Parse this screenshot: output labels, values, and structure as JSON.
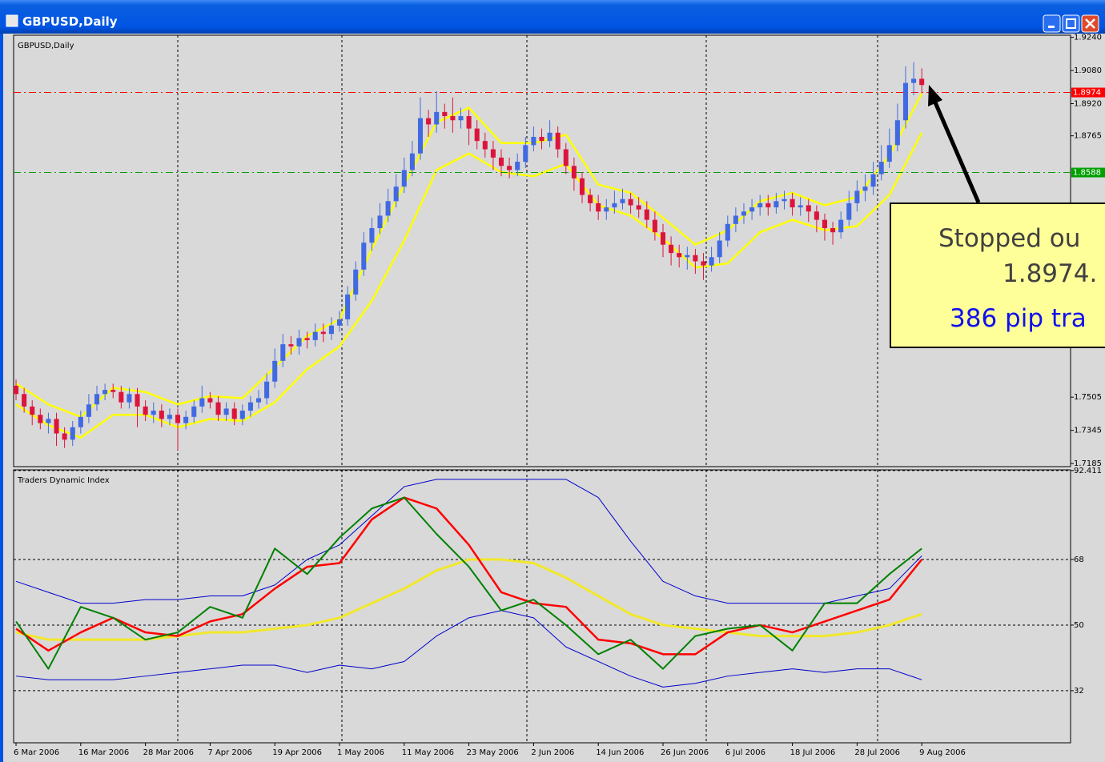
{
  "window_title": "GBPUSD,Daily",
  "chart_data": [
    {
      "type": "candlestick",
      "title": "GBPUSD,Daily",
      "bull_color": "#4169e1",
      "bear_color": "#dc143c",
      "xlim": [
        -0.3,
        130.4
      ],
      "ylim": [
        1.717,
        1.925
      ],
      "yticks": [
        {
          "value": 1.924,
          "label": "1.9240"
        },
        {
          "value": 1.908,
          "label": "1.9080"
        },
        {
          "value": 1.892,
          "label": "1.8920"
        },
        {
          "value": 1.8765,
          "label": "1.8765"
        },
        {
          "value": 1.7505,
          "label": "1.7505"
        },
        {
          "value": 1.7345,
          "label": "1.7345"
        },
        {
          "value": 1.7185,
          "label": "1.7185"
        }
      ],
      "xticks": [
        {
          "value": 0,
          "label": "6 Mar 2006"
        },
        {
          "value": 8,
          "label": "16 Mar 2006"
        },
        {
          "value": 16,
          "label": "28 Mar 2006"
        },
        {
          "value": 24,
          "label": "7 Apr 2006"
        },
        {
          "value": 32,
          "label": "19 Apr 2006"
        },
        {
          "value": 40,
          "label": "1 May 2006"
        },
        {
          "value": 48,
          "label": "11 May 2006"
        },
        {
          "value": 56,
          "label": "23 May 2006"
        },
        {
          "value": 64,
          "label": "2 Jun 2006"
        },
        {
          "value": 72,
          "label": "14 Jun 2006"
        },
        {
          "value": 80,
          "label": "26 Jun 2006"
        },
        {
          "value": 88,
          "label": "6 Jul 2006"
        },
        {
          "value": 96,
          "label": "18 Jul 2006"
        },
        {
          "value": 104,
          "label": "28 Jul 2006"
        },
        {
          "value": 112,
          "label": "9 Aug 2006"
        }
      ],
      "levels": [
        {
          "value": 1.8974,
          "color": "#ff0000"
        },
        {
          "value": 1.8588,
          "color": "#00a000"
        }
      ],
      "open": [
        1.756,
        1.752,
        1.746,
        1.742,
        1.738,
        1.74,
        1.733,
        1.73,
        1.736,
        1.741,
        1.747,
        1.752,
        1.754,
        1.753,
        1.748,
        1.752,
        1.746,
        1.742,
        1.744,
        1.74,
        1.742,
        1.738,
        1.741,
        1.746,
        1.75,
        1.748,
        1.742,
        1.745,
        1.74,
        1.744,
        1.748,
        1.75,
        1.758,
        1.768,
        1.776,
        1.775,
        1.779,
        1.778,
        1.782,
        1.781,
        1.785,
        1.788,
        1.8,
        1.812,
        1.825,
        1.832,
        1.838,
        1.845,
        1.852,
        1.86,
        1.868,
        1.885,
        1.882,
        1.888,
        1.886,
        1.884,
        1.886,
        1.88,
        1.874,
        1.87,
        1.866,
        1.862,
        1.86,
        1.864,
        1.872,
        1.876,
        1.874,
        1.878,
        1.87,
        1.862,
        1.856,
        1.848,
        1.844,
        1.84,
        1.842,
        1.844,
        1.846,
        1.843,
        1.841,
        1.836,
        1.83,
        1.824,
        1.82,
        1.818,
        1.819,
        1.816,
        1.814,
        1.818,
        1.826,
        1.834,
        1.838,
        1.84,
        1.842,
        1.844,
        1.842,
        1.845,
        1.846,
        1.842,
        1.843,
        1.84,
        1.836,
        1.832,
        1.83,
        1.836,
        1.844,
        1.85,
        1.852,
        1.858,
        1.864,
        1.872,
        1.884,
        1.902,
        1.904
      ],
      "high": [
        1.759,
        1.755,
        1.749,
        1.745,
        1.743,
        1.743,
        1.736,
        1.739,
        1.744,
        1.752,
        1.756,
        1.757,
        1.757,
        1.756,
        1.755,
        1.755,
        1.749,
        1.748,
        1.747,
        1.745,
        1.745,
        1.744,
        1.749,
        1.756,
        1.753,
        1.751,
        1.748,
        1.748,
        1.747,
        1.751,
        1.754,
        1.762,
        1.774,
        1.781,
        1.78,
        1.783,
        1.782,
        1.786,
        1.786,
        1.789,
        1.792,
        1.804,
        1.816,
        1.83,
        1.837,
        1.844,
        1.851,
        1.858,
        1.866,
        1.874,
        1.895,
        1.889,
        1.898,
        1.892,
        1.895,
        1.89,
        1.889,
        1.884,
        1.878,
        1.874,
        1.87,
        1.866,
        1.868,
        1.876,
        1.881,
        1.88,
        1.884,
        1.881,
        1.873,
        1.866,
        1.859,
        1.851,
        1.848,
        1.846,
        1.85,
        1.851,
        1.849,
        1.847,
        1.845,
        1.84,
        1.834,
        1.828,
        1.824,
        1.823,
        1.822,
        1.82,
        1.823,
        1.83,
        1.838,
        1.842,
        1.844,
        1.846,
        1.848,
        1.848,
        1.849,
        1.85,
        1.849,
        1.847,
        1.846,
        1.843,
        1.839,
        1.835,
        1.84,
        1.85,
        1.855,
        1.858,
        1.864,
        1.872,
        1.88,
        1.892,
        1.91,
        1.912,
        1.909
      ],
      "low": [
        1.749,
        1.743,
        1.737,
        1.735,
        1.733,
        1.727,
        1.726,
        1.727,
        1.733,
        1.738,
        1.744,
        1.749,
        1.75,
        1.745,
        1.745,
        1.736,
        1.739,
        1.738,
        1.736,
        1.737,
        1.725,
        1.735,
        1.738,
        1.743,
        1.745,
        1.739,
        1.739,
        1.737,
        1.737,
        1.741,
        1.745,
        1.747,
        1.755,
        1.765,
        1.771,
        1.771,
        1.774,
        1.775,
        1.777,
        1.778,
        1.782,
        1.785,
        1.797,
        1.809,
        1.821,
        1.829,
        1.835,
        1.842,
        1.849,
        1.857,
        1.865,
        1.876,
        1.878,
        1.88,
        1.878,
        1.88,
        1.872,
        1.87,
        1.866,
        1.86,
        1.857,
        1.856,
        1.857,
        1.861,
        1.869,
        1.87,
        1.871,
        1.866,
        1.858,
        1.85,
        1.844,
        1.84,
        1.836,
        1.836,
        1.839,
        1.841,
        1.839,
        1.837,
        1.832,
        1.826,
        1.818,
        1.814,
        1.813,
        1.812,
        1.81,
        1.807,
        1.811,
        1.815,
        1.823,
        1.83,
        1.834,
        1.836,
        1.838,
        1.838,
        1.839,
        1.841,
        1.838,
        1.838,
        1.835,
        1.83,
        1.826,
        1.824,
        1.827,
        1.833,
        1.84,
        1.845,
        1.848,
        1.855,
        1.861,
        1.869,
        1.88,
        1.896,
        1.897
      ],
      "close": [
        1.752,
        1.746,
        1.742,
        1.738,
        1.74,
        1.733,
        1.73,
        1.736,
        1.741,
        1.747,
        1.752,
        1.754,
        1.753,
        1.748,
        1.752,
        1.746,
        1.742,
        1.744,
        1.74,
        1.742,
        1.738,
        1.741,
        1.746,
        1.75,
        1.748,
        1.742,
        1.745,
        1.74,
        1.744,
        1.748,
        1.75,
        1.758,
        1.768,
        1.776,
        1.775,
        1.779,
        1.778,
        1.782,
        1.781,
        1.785,
        1.788,
        1.8,
        1.812,
        1.825,
        1.832,
        1.838,
        1.845,
        1.852,
        1.86,
        1.868,
        1.885,
        1.882,
        1.888,
        1.886,
        1.884,
        1.886,
        1.88,
        1.874,
        1.87,
        1.866,
        1.862,
        1.86,
        1.864,
        1.872,
        1.876,
        1.874,
        1.878,
        1.87,
        1.862,
        1.856,
        1.848,
        1.844,
        1.84,
        1.842,
        1.844,
        1.846,
        1.843,
        1.841,
        1.836,
        1.83,
        1.824,
        1.82,
        1.818,
        1.819,
        1.816,
        1.814,
        1.818,
        1.826,
        1.834,
        1.838,
        1.84,
        1.842,
        1.844,
        1.842,
        1.845,
        1.846,
        1.842,
        1.843,
        1.84,
        1.836,
        1.832,
        1.83,
        1.836,
        1.844,
        1.85,
        1.852,
        1.858,
        1.864,
        1.872,
        1.884,
        1.902,
        1.904,
        1.901
      ],
      "overlay_x": [
        0,
        4,
        8,
        12,
        16,
        20,
        24,
        28,
        32,
        36,
        40,
        44,
        48,
        52,
        56,
        60,
        64,
        68,
        72,
        76,
        80,
        84,
        88,
        92,
        96,
        100,
        104,
        108,
        112
      ],
      "overlays": [
        {
          "color": "#ffff00",
          "values": [
            1.757,
            1.747,
            1.741,
            1.755,
            1.753,
            1.747,
            1.751,
            1.75,
            1.765,
            1.78,
            1.788,
            1.822,
            1.853,
            1.883,
            1.89,
            1.873,
            1.873,
            1.877,
            1.853,
            1.849,
            1.837,
            1.824,
            1.831,
            1.845,
            1.849,
            1.843,
            1.847,
            1.867,
            1.897
          ]
        },
        {
          "color": "#ffff00",
          "values": [
            1.747,
            1.737,
            1.731,
            1.742,
            1.742,
            1.736,
            1.74,
            1.739,
            1.748,
            1.764,
            1.775,
            1.797,
            1.826,
            1.86,
            1.868,
            1.859,
            1.857,
            1.863,
            1.843,
            1.838,
            1.827,
            1.813,
            1.815,
            1.83,
            1.836,
            1.831,
            1.833,
            1.848,
            1.878
          ]
        }
      ]
    },
    {
      "type": "line",
      "title": "Traders Dynamic Index",
      "xlim": [
        -0.3,
        130.4
      ],
      "ylim": [
        17.7,
        92.6
      ],
      "yticks": [
        92.411,
        68,
        50,
        32
      ],
      "grid": true,
      "x": [
        0,
        4,
        8,
        12,
        16,
        20,
        24,
        28,
        32,
        36,
        40,
        44,
        48,
        52,
        56,
        60,
        64,
        68,
        72,
        76,
        80,
        84,
        88,
        92,
        96,
        100,
        104,
        108,
        112
      ],
      "series": [
        {
          "color": "#0000cc",
          "width": 1,
          "values": [
            62,
            59,
            56,
            56,
            57,
            57,
            58,
            58,
            61,
            68,
            72,
            80,
            88,
            90,
            90,
            90,
            90,
            90,
            85,
            73,
            62,
            58,
            56,
            56,
            56,
            56,
            58,
            60,
            69
          ]
        },
        {
          "color": "#0000cc",
          "width": 1,
          "values": [
            36,
            35,
            35,
            35,
            36,
            37,
            38,
            39,
            39,
            37,
            39,
            38,
            40,
            47,
            52,
            54,
            52,
            44,
            40,
            36,
            33,
            34,
            36,
            37,
            38,
            37,
            38,
            38,
            35
          ]
        },
        {
          "color": "#f2e82a",
          "width": 3,
          "values": [
            48,
            46,
            46,
            46,
            46,
            47,
            48,
            48,
            49,
            50,
            52,
            56,
            60,
            65,
            68,
            68,
            67,
            63,
            58,
            53,
            50,
            49,
            48,
            47,
            47,
            47,
            48,
            50,
            53
          ]
        },
        {
          "color": "#ff0000",
          "width": 2.5,
          "values": [
            49,
            43,
            48,
            52,
            48,
            47,
            51,
            53,
            60,
            66,
            67,
            79,
            85,
            82,
            72,
            59,
            56,
            55,
            46,
            45,
            42,
            42,
            48,
            50,
            48,
            51,
            54,
            57,
            68
          ]
        },
        {
          "color": "#008000",
          "width": 2,
          "values": [
            51,
            38,
            55,
            52,
            46,
            48,
            55,
            52,
            71,
            64,
            74,
            82,
            85,
            75,
            66,
            54,
            57,
            50,
            42,
            46,
            38,
            47,
            49,
            50,
            43,
            56,
            56,
            64,
            71
          ]
        }
      ]
    }
  ],
  "annotation": {
    "lines": [
      "Stopped ou",
      "1.8974.",
      "386 pip tra"
    ]
  }
}
